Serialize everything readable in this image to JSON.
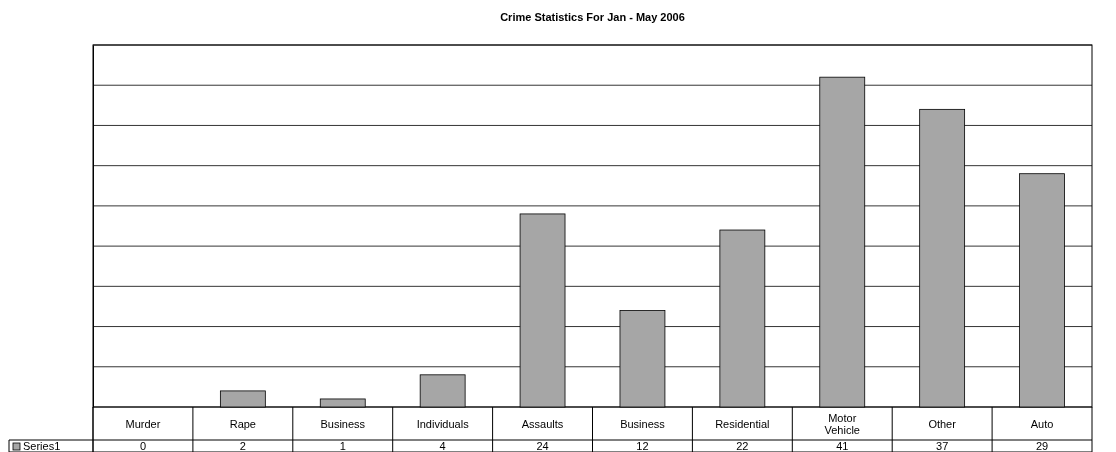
{
  "chart_data": {
    "type": "bar",
    "title": "Crime Statistics For Jan - May 2006",
    "categories": [
      "Murder",
      "Rape",
      "Business",
      "Individuals",
      "Assaults",
      "Business",
      "Residential",
      "Motor Vehicle",
      "Other",
      "Auto"
    ],
    "series": [
      {
        "name": "Series1",
        "color": "#a6a6a6",
        "values": [
          0,
          2,
          1,
          4,
          24,
          12,
          22,
          41,
          37,
          29
        ]
      }
    ],
    "ylim": [
      0,
      45
    ],
    "yticks": [
      {
        "value": 0,
        "label": null
      },
      {
        "value": 5,
        "label": null
      },
      {
        "value": 10,
        "label": null
      },
      {
        "value": 15,
        "label": null
      },
      {
        "value": 20,
        "label": null
      },
      {
        "value": 25,
        "label": null
      },
      {
        "value": 30,
        "label": null
      },
      {
        "value": 35,
        "label": null
      },
      {
        "value": 40,
        "label": null
      },
      {
        "value": 45,
        "label": null
      }
    ],
    "tick_labels": "x",
    "grid": "y",
    "data_labels": true,
    "legend": "bottom left"
  }
}
